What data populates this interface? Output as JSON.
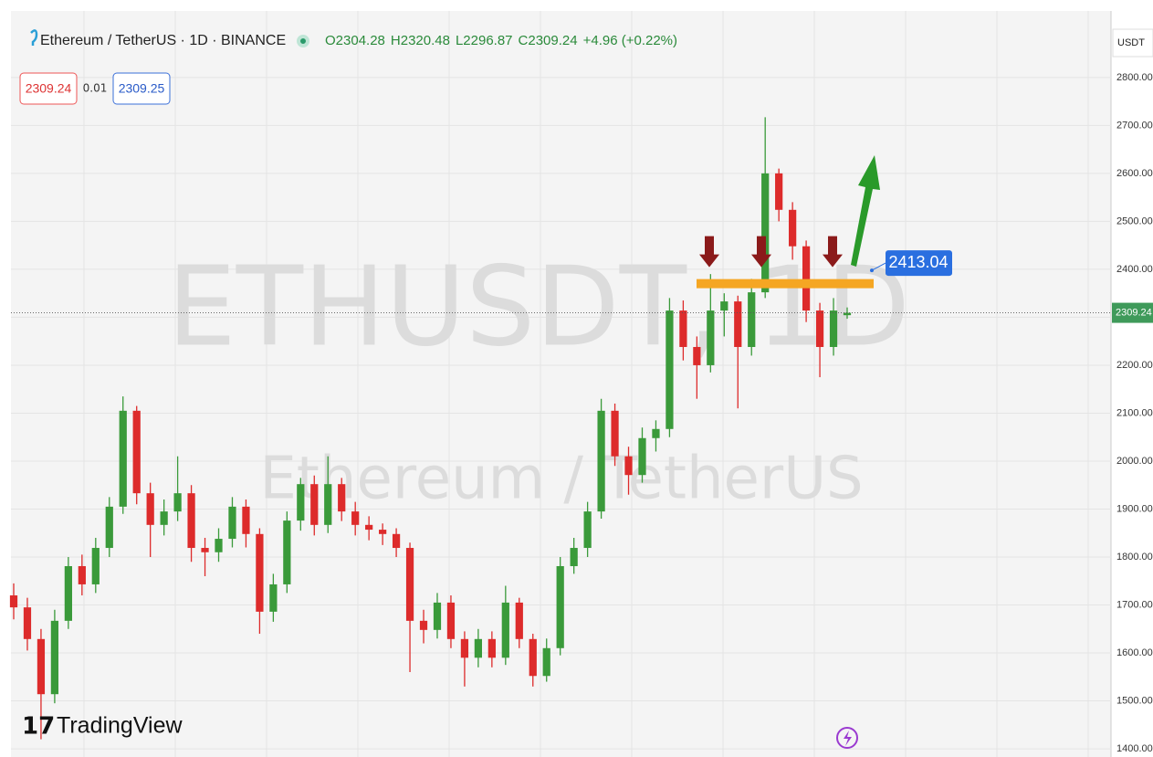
{
  "chart_data": {
    "type": "candlestick",
    "title": "Ethereum / TetherUS · 1D · BINANCE",
    "ohlc_legend": [
      "O2304.28",
      "H2320.48",
      "L2296.87",
      "C2309.24",
      "+4.96 (+0.22%)"
    ],
    "bid": 2309.24,
    "spread": 0.01,
    "ask": 2309.25,
    "currency": "USDT",
    "watermark": [
      "ETHUSDT, 1D",
      "Ethereum / TetherUS"
    ],
    "brand": "TradingView",
    "up_color": "#3a9a3a",
    "down_color": "#dd2b2b",
    "open": [
      1720,
      1695,
      1629,
      1514,
      1667,
      1781,
      1743,
      1819,
      1905,
      2105,
      1933,
      1867,
      1895,
      1933,
      1819,
      1810,
      1838,
      1905,
      1848,
      1686,
      1743,
      1876,
      1952,
      1867,
      1952,
      1895,
      1867,
      1857,
      1848,
      1819,
      1667,
      1648,
      1705,
      1629,
      1590,
      1629,
      1590,
      1705,
      1629,
      1552,
      1610,
      1781,
      1819,
      1895,
      2105,
      2010,
      1971,
      2048,
      2067,
      2314,
      2238,
      2200,
      2314,
      2333,
      2238,
      2352,
      2600,
      2524,
      2448,
      2314,
      2238,
      2304.28
    ],
    "high": [
      1745,
      1715,
      1650,
      1690,
      1800,
      1805,
      1840,
      1925,
      2135,
      2115,
      1955,
      1920,
      2010,
      1950,
      1840,
      1860,
      1925,
      1920,
      1860,
      1765,
      1895,
      1965,
      1970,
      2010,
      1965,
      1915,
      1885,
      1870,
      1860,
      1830,
      1690,
      1725,
      1720,
      1645,
      1650,
      1645,
      1740,
      1715,
      1640,
      1630,
      1800,
      1840,
      1915,
      2130,
      2120,
      2030,
      2070,
      2085,
      2340,
      2335,
      2260,
      2390,
      2350,
      2345,
      2380,
      2717,
      2610,
      2540,
      2460,
      2330,
      2340,
      2320.48
    ],
    "low": [
      1670,
      1605,
      1420,
      1495,
      1650,
      1720,
      1725,
      1800,
      1890,
      1910,
      1800,
      1845,
      1875,
      1790,
      1760,
      1790,
      1820,
      1820,
      1640,
      1665,
      1725,
      1855,
      1845,
      1850,
      1875,
      1845,
      1835,
      1825,
      1800,
      1560,
      1620,
      1630,
      1610,
      1530,
      1570,
      1570,
      1575,
      1610,
      1530,
      1540,
      1595,
      1765,
      1800,
      1880,
      1990,
      1930,
      1955,
      2020,
      2050,
      2210,
      2130,
      2185,
      2260,
      2110,
      2220,
      2340,
      2500,
      2420,
      2290,
      2175,
      2220,
      2296.87
    ],
    "close": [
      1695,
      1629,
      1514,
      1667,
      1781,
      1743,
      1819,
      1905,
      2105,
      1933,
      1867,
      1895,
      1933,
      1819,
      1810,
      1838,
      1905,
      1848,
      1686,
      1743,
      1876,
      1952,
      1867,
      1952,
      1895,
      1867,
      1857,
      1848,
      1819,
      1667,
      1648,
      1705,
      1629,
      1590,
      1629,
      1590,
      1705,
      1629,
      1552,
      1610,
      1781,
      1819,
      1895,
      2105,
      2010,
      1971,
      2048,
      2067,
      2314,
      2238,
      2200,
      2314,
      2333,
      2238,
      2352,
      2600,
      2524,
      2448,
      2314,
      2238,
      2314,
      2309.24
    ],
    "resistance": 2370,
    "target": 2413.04,
    "ylim": [
      1383,
      2933
    ],
    "yticks": [
      {
        "value": 1400,
        "label": "1400.00"
      },
      {
        "value": 1500,
        "label": "1500.00"
      },
      {
        "value": 1600,
        "label": "1600.00"
      },
      {
        "value": 1700,
        "label": "1700.00"
      },
      {
        "value": 1800,
        "label": "1800.00"
      },
      {
        "value": 1900,
        "label": "1900.00"
      },
      {
        "value": 2000,
        "label": "2000.00"
      },
      {
        "value": 2100,
        "label": "2100.00"
      },
      {
        "value": 2200,
        "label": "2200.00"
      },
      {
        "value": 2300,
        "label": "2300.00"
      },
      {
        "value": 2400,
        "label": "2400.00"
      },
      {
        "value": 2500,
        "label": "2500.00"
      },
      {
        "value": 2600,
        "label": "2600.00"
      },
      {
        "value": 2700,
        "label": "2700.00"
      },
      {
        "value": 2800,
        "label": "2800.00"
      }
    ],
    "grid": true
  }
}
